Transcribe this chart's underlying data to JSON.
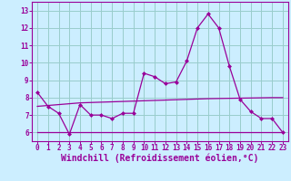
{
  "x": [
    0,
    1,
    2,
    3,
    4,
    5,
    6,
    7,
    8,
    9,
    10,
    11,
    12,
    13,
    14,
    15,
    16,
    17,
    18,
    19,
    20,
    21,
    22,
    23
  ],
  "line_main": [
    8.3,
    7.5,
    7.1,
    5.9,
    7.6,
    7.0,
    7.0,
    6.8,
    7.1,
    7.1,
    9.4,
    9.2,
    8.8,
    8.9,
    10.1,
    12.0,
    12.8,
    12.0,
    9.8,
    7.9,
    7.2,
    6.8,
    6.8,
    6.0
  ],
  "line_upper": [
    7.5,
    7.55,
    7.6,
    7.65,
    7.7,
    7.72,
    7.74,
    7.76,
    7.78,
    7.8,
    7.82,
    7.84,
    7.86,
    7.88,
    7.9,
    7.92,
    7.94,
    7.95,
    7.96,
    7.97,
    7.98,
    7.99,
    8.0,
    8.0
  ],
  "line_lower": [
    6.0,
    6.0,
    6.0,
    6.0,
    6.0,
    6.0,
    6.0,
    6.0,
    6.0,
    6.0,
    6.0,
    6.0,
    6.0,
    6.0,
    6.0,
    6.0,
    6.0,
    6.0,
    6.0,
    6.0,
    6.0,
    6.0,
    6.0,
    6.0
  ],
  "line_color": "#990099",
  "bg_color": "#cceeff",
  "grid_color": "#99cccc",
  "xlabel": "Windchill (Refroidissement éolien,°C)",
  "xlim": [
    -0.5,
    23.5
  ],
  "ylim": [
    5.5,
    13.5
  ],
  "yticks": [
    6,
    7,
    8,
    9,
    10,
    11,
    12,
    13
  ],
  "xticks": [
    0,
    1,
    2,
    3,
    4,
    5,
    6,
    7,
    8,
    9,
    10,
    11,
    12,
    13,
    14,
    15,
    16,
    17,
    18,
    19,
    20,
    21,
    22,
    23
  ],
  "tick_fontsize": 5.5,
  "xlabel_fontsize": 7.0
}
